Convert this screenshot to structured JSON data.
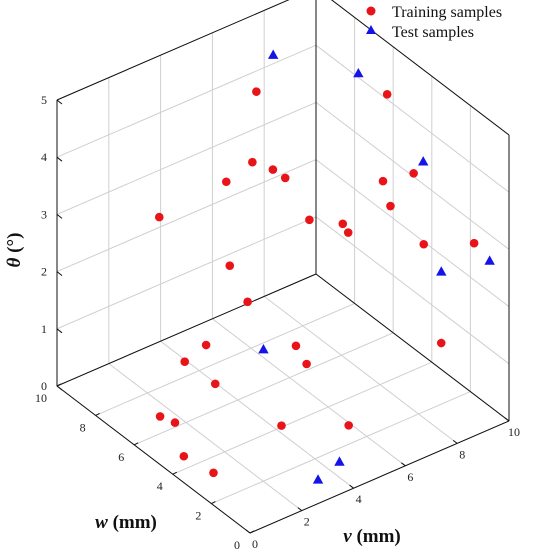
{
  "chart_data": {
    "type": "scatter3d",
    "xlabel": {
      "symbol": "v",
      "unit": " (mm)"
    },
    "ylabel": {
      "symbol": "w",
      "unit": " (mm)"
    },
    "zlabel": {
      "symbol": "θ",
      "unit": " (°)"
    },
    "xlim": [
      0,
      10
    ],
    "ylim": [
      0,
      10
    ],
    "zlim": [
      0,
      5
    ],
    "xticks": [
      "0",
      "2",
      "4",
      "6",
      "8",
      "10"
    ],
    "yticks": [
      "0",
      "2",
      "4",
      "6",
      "8",
      "10"
    ],
    "zticks": [
      "0",
      "1",
      "2",
      "3",
      "4",
      "5"
    ],
    "grid": true,
    "legend_position": "top-right",
    "series": [
      {
        "name": "Training samples",
        "marker": "circle",
        "color": "#e8141a",
        "points": [
          [
            0.5,
            4.1,
            0.19
          ],
          [
            0.9,
            3.1,
            0.08
          ],
          [
            1.5,
            5.9,
            0.12
          ],
          [
            3.6,
            3.2,
            0.35
          ],
          [
            5.3,
            2.0,
            0.33
          ],
          [
            8.8,
            1.9,
            1.11
          ],
          [
            3.8,
            6.9,
            0.09
          ],
          [
            1.0,
            6.0,
            0.3
          ],
          [
            3.9,
            2.3,
            1.6
          ],
          [
            6.4,
            3.5,
            3.1
          ],
          [
            7.9,
            1.6,
            3.09
          ],
          [
            9.1,
            0.6,
            3.13
          ],
          [
            9.0,
            3.6,
            3.6
          ],
          [
            4.7,
            1.5,
            4.1
          ],
          [
            6.7,
            2.1,
            4.3
          ],
          [
            2.1,
            6.2,
            0.99
          ],
          [
            5.5,
            5.0,
            0.91
          ],
          [
            4.9,
            6.7,
            1.36
          ],
          [
            3.0,
            6.3,
            1.08
          ],
          [
            6.0,
            9.1,
            1.16
          ],
          [
            6.1,
            7.0,
            3.36
          ],
          [
            6.5,
            8.6,
            3.0
          ],
          [
            3.8,
            9.8,
            2.26
          ],
          [
            4.3,
            7.0,
            3.5
          ],
          [
            6.8,
            7.3,
            3.0
          ],
          [
            7.4,
            9.6,
            3.8
          ],
          [
            9.0,
            9.0,
            1.4
          ],
          [
            9.0,
            4.8,
            2.72
          ],
          [
            8.5,
            4.3,
            4.9
          ]
        ]
      },
      {
        "name": "Test samples",
        "marker": "triangle",
        "color": "#1414e8",
        "points": [
          [
            4.2,
            1.0,
            0.17
          ],
          [
            3.0,
            0.5,
            0.22
          ],
          [
            8.7,
            2.7,
            4.1
          ],
          [
            9.7,
            0.6,
            2.71
          ],
          [
            9.1,
            2.3,
            2.2
          ],
          [
            3.5,
            4.0,
            1.5
          ],
          [
            7.9,
            9.4,
            4.4
          ],
          [
            9.4,
            7.0,
            4.4
          ]
        ]
      }
    ]
  }
}
